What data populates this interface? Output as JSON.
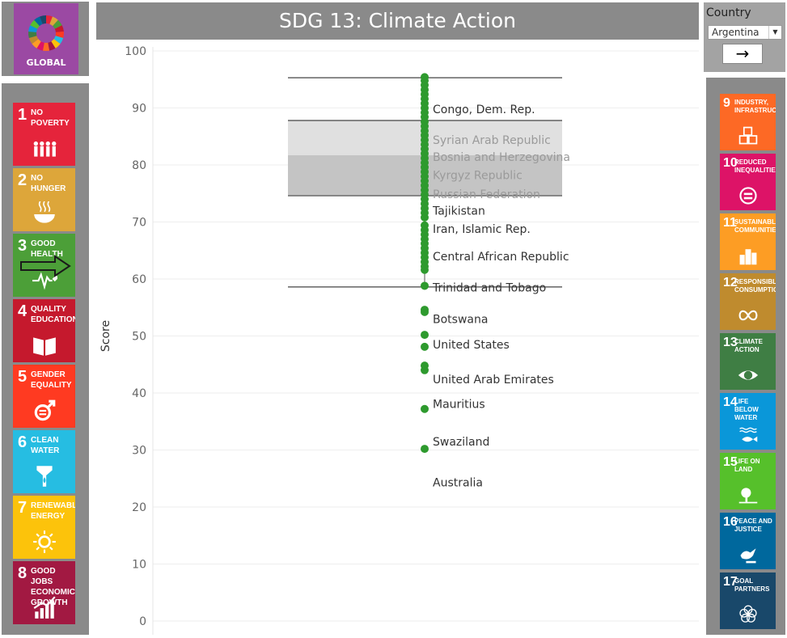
{
  "global": {
    "label": "GLOBAL"
  },
  "title": "SDG  13: Climate Action",
  "filter": {
    "label": "Country",
    "selected": "Argentina",
    "go_symbol": "→"
  },
  "goals_left": [
    {
      "num": "1",
      "name": "No Poverty",
      "color": "#e5243b",
      "icon": "people-icon"
    },
    {
      "num": "2",
      "name": "No Hunger",
      "color": "#dda63a",
      "icon": "bowl-icon"
    },
    {
      "num": "3",
      "name": "Good Health",
      "color": "#4c9f38",
      "icon": "heartbeat-icon"
    },
    {
      "num": "4",
      "name": "Quality Education",
      "color": "#c5192d",
      "icon": "book-icon"
    },
    {
      "num": "5",
      "name": "Gender Equality",
      "color": "#ff3a21",
      "icon": "gender-icon"
    },
    {
      "num": "6",
      "name": "Clean Water",
      "color": "#26bde2",
      "icon": "water-drop-icon"
    },
    {
      "num": "7",
      "name": "Renewable Energy",
      "color": "#fcc30b",
      "icon": "sun-icon"
    },
    {
      "num": "8",
      "name": "Good Jobs Economic Growth",
      "color": "#a21942",
      "icon": "growth-chart-icon"
    }
  ],
  "goals_right": [
    {
      "num": "9",
      "name": "Industry, Infrastructure",
      "color": "#fd6925",
      "icon": "cubes-icon"
    },
    {
      "num": "10",
      "name": "Reduced Inequalities",
      "color": "#dd1367",
      "icon": "equals-icon"
    },
    {
      "num": "11",
      "name": "Sustainable Communities",
      "color": "#fd9d24",
      "icon": "buildings-icon"
    },
    {
      "num": "12",
      "name": "Responsible Consumption",
      "color": "#bf8b2e",
      "icon": "infinity-icon"
    },
    {
      "num": "13",
      "name": "Climate Action",
      "color": "#3f7e44",
      "icon": "eye-globe-icon"
    },
    {
      "num": "14",
      "name": "Life Below Water",
      "color": "#0a97d9",
      "icon": "fish-icon"
    },
    {
      "num": "15",
      "name": "Life On Land",
      "color": "#56c02b",
      "icon": "tree-icon"
    },
    {
      "num": "16",
      "name": "Peace and Justice",
      "color": "#00689d",
      "icon": "dove-icon"
    },
    {
      "num": "17",
      "name": "Goal Partners",
      "color": "#19486a",
      "icon": "rings-icon"
    }
  ],
  "chart_data": {
    "type": "scatter",
    "ylabel": "Score",
    "ylim": [
      0,
      100
    ],
    "yticks": [
      0,
      10,
      20,
      30,
      40,
      50,
      60,
      70,
      80,
      90,
      100
    ],
    "point_color": "#2e9a2e",
    "whisker_top": 95.3,
    "whisker_bottom": 58.6,
    "box_top": 87.8,
    "box_median": 81.7,
    "box_bottom": 74.6,
    "values": [
      95.4,
      94.8,
      94.0,
      93.2,
      92.4,
      91.6,
      90.8,
      90.0,
      89.2,
      88.4,
      87.6,
      86.8,
      86.0,
      85.2,
      84.4,
      83.6,
      82.8,
      82.0,
      81.2,
      80.4,
      79.6,
      78.8,
      78.0,
      77.2,
      76.4,
      75.6,
      74.8,
      74.0,
      73.2,
      72.4,
      71.6,
      70.8,
      69.4,
      68.6,
      67.8,
      67.0,
      66.2,
      65.4,
      64.6,
      63.8,
      63.0,
      62.2,
      61.6,
      58.8,
      54.6,
      54.2,
      50.2,
      48.1,
      44.8,
      44.0,
      37.2,
      30.2
    ],
    "labels": [
      {
        "text": "Congo, Dem. Rep.",
        "y": 89.8,
        "faded": false
      },
      {
        "text": "Syrian Arab Republic",
        "y": 84.4,
        "faded": true
      },
      {
        "text": "Bosnia and Herzegovina",
        "y": 81.4,
        "faded": true
      },
      {
        "text": "Kyrgyz Republic",
        "y": 78.2,
        "faded": true
      },
      {
        "text": "Russian Federation",
        "y": 74.9,
        "faded": true
      },
      {
        "text": "Tajikistan",
        "y": 72.0,
        "faded": false
      },
      {
        "text": "Iran, Islamic Rep.",
        "y": 68.8,
        "faded": false
      },
      {
        "text": "Central African Republic",
        "y": 64.0,
        "faded": false
      },
      {
        "text": "Trinidad and Tobago",
        "y": 58.5,
        "faded": false
      },
      {
        "text": "Botswana",
        "y": 53.0,
        "faded": false
      },
      {
        "text": "United States",
        "y": 48.5,
        "faded": false
      },
      {
        "text": "United Arab Emirates",
        "y": 42.4,
        "faded": false
      },
      {
        "text": "Mauritius",
        "y": 38.1,
        "faded": false
      },
      {
        "text": "Swaziland",
        "y": 31.5,
        "faded": false
      },
      {
        "text": "Australia",
        "y": 24.3,
        "faded": false
      }
    ]
  }
}
